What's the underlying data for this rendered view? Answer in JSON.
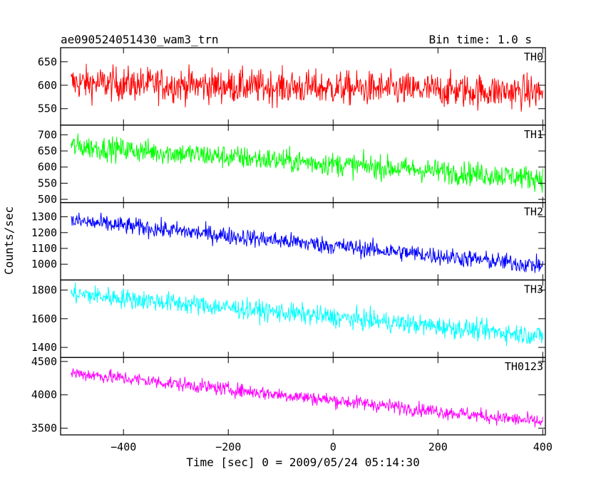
{
  "header": {
    "title": "ae090524051430_wam3_trn",
    "bin_time": "Bin time: 1.0 s"
  },
  "axes": {
    "xlabel": "Time [sec] 0 = 2009/05/24 05:14:30",
    "ylabel": "Counts/sec"
  },
  "chart_data": {
    "type": "line",
    "title": "ae090524051430_wam3_trn",
    "subtitle": "Bin time: 1.0 s",
    "xlabel": "Time [sec] 0 = 2009/05/24 05:14:30",
    "ylabel": "Counts/sec",
    "xlim": [
      -520,
      405
    ],
    "x_ticks": [
      -400,
      -200,
      0,
      200,
      400
    ],
    "x_tick_labels": [
      "−400",
      "−200",
      "0",
      "200",
      "400"
    ],
    "x_range_data": [
      -500,
      400
    ],
    "bin_time_s": 1.0,
    "grid": false,
    "panels": [
      {
        "name": "TH0",
        "color": "#ff0000",
        "ylim": [
          515,
          680
        ],
        "y_ticks": [
          550,
          600,
          650
        ],
        "y_tick_labels": [
          "550",
          "600",
          "650"
        ],
        "trend_start": 605,
        "trend_end": 585,
        "noise_amplitude": 26
      },
      {
        "name": "TH1",
        "color": "#00ff00",
        "ylim": [
          490,
          730
        ],
        "y_ticks": [
          500,
          550,
          600,
          650,
          700
        ],
        "y_tick_labels": [
          "500",
          "550",
          "600",
          "650",
          "700"
        ],
        "trend_start": 665,
        "trend_end": 565,
        "noise_amplitude": 26
      },
      {
        "name": "TH2",
        "color": "#0000ff",
        "ylim": [
          900,
          1390
        ],
        "y_ticks": [
          1000,
          1100,
          1200,
          1300
        ],
        "y_tick_labels": [
          "1000",
          "1100",
          "1200",
          "1300"
        ],
        "trend_start": 1275,
        "trend_end": 990,
        "noise_amplitude": 40
      },
      {
        "name": "TH3",
        "color": "#00ffff",
        "ylim": [
          1330,
          1870
        ],
        "y_ticks": [
          1400,
          1600,
          1800
        ],
        "y_tick_labels": [
          "1400",
          "1600",
          "1800"
        ],
        "trend_start": 1775,
        "trend_end": 1480,
        "noise_amplitude": 50
      },
      {
        "name": "TH0123",
        "color": "#ff00ff",
        "ylim": [
          3400,
          4560
        ],
        "y_ticks": [
          3500,
          4000,
          4500
        ],
        "y_tick_labels": [
          "3500",
          "4000",
          "4500"
        ],
        "trend_start": 4330,
        "trend_end": 3590,
        "noise_amplitude": 75
      }
    ]
  }
}
